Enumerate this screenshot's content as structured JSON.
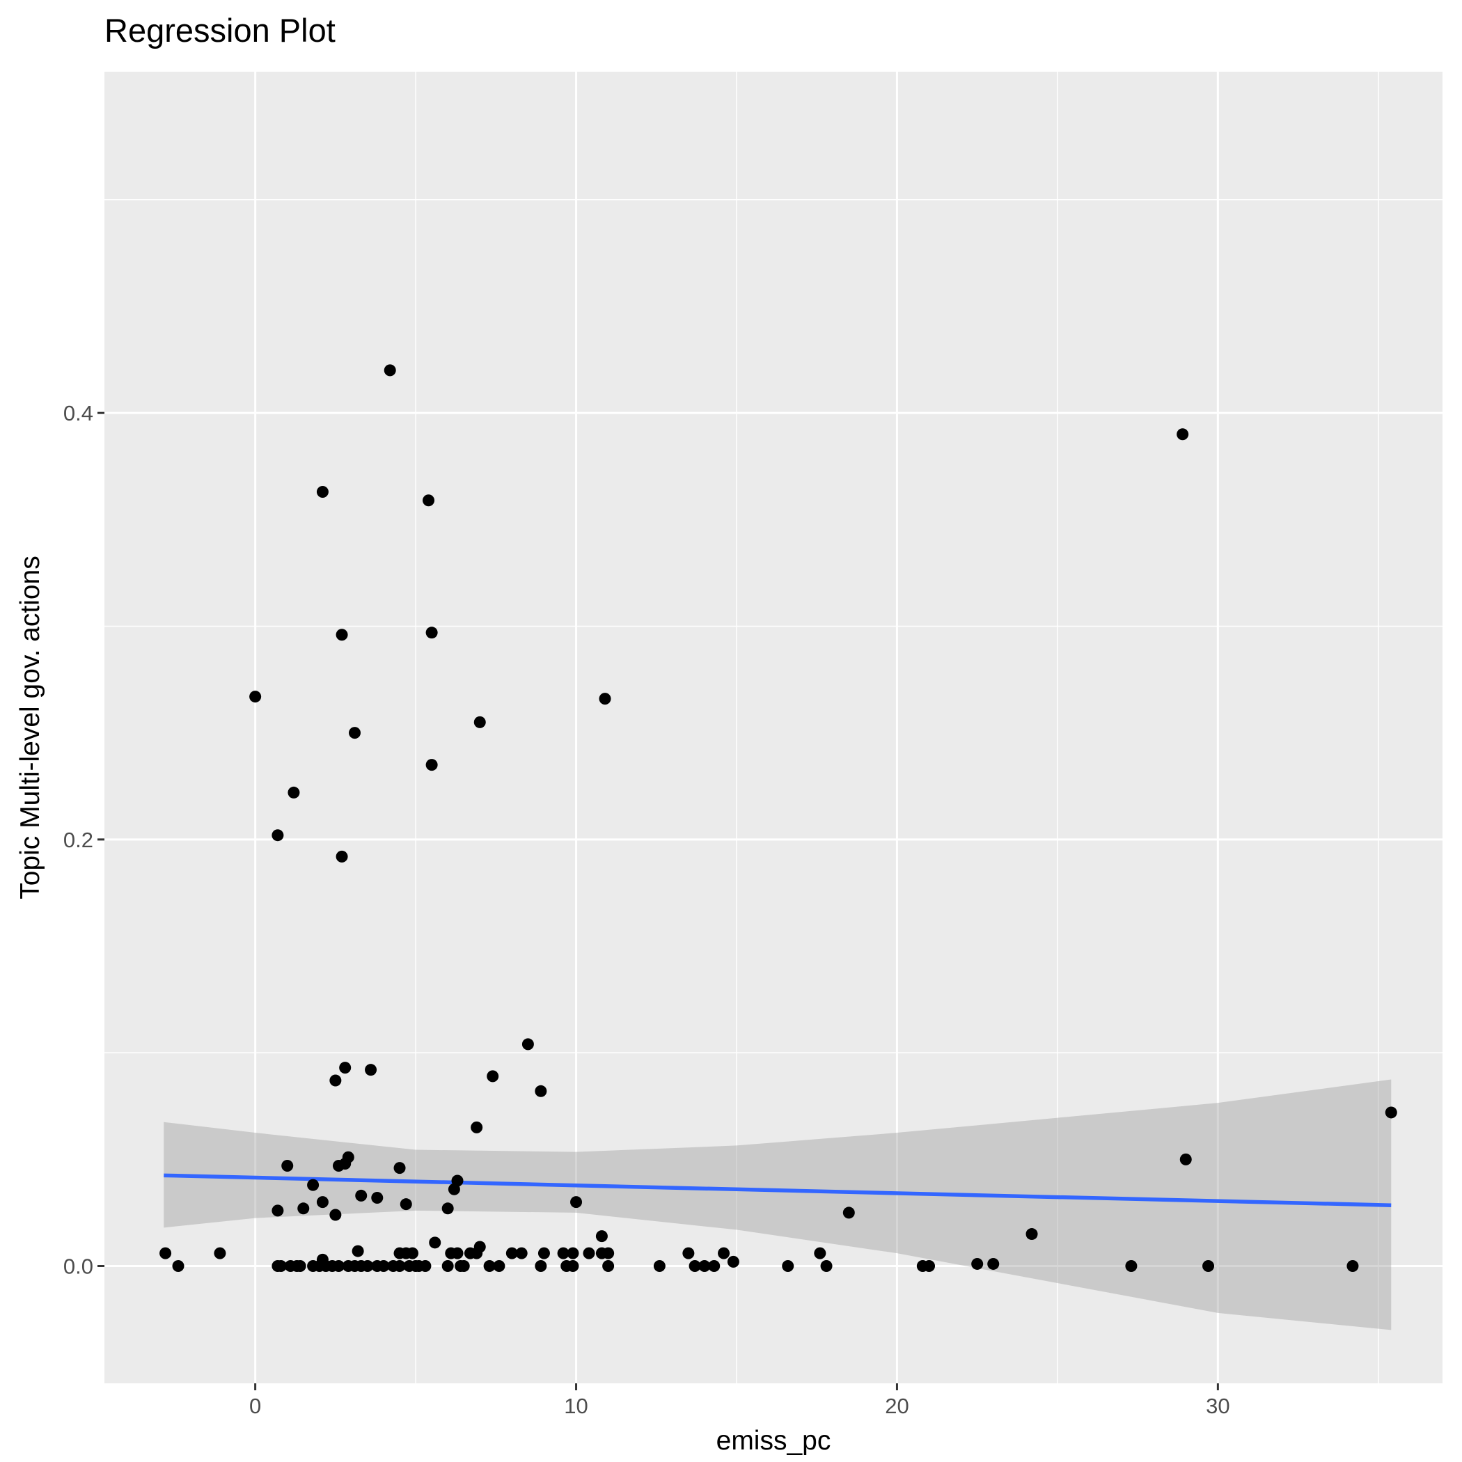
{
  "chart_data": {
    "type": "scatter",
    "title": "Regression Plot",
    "xlabel": "emiss_pc",
    "ylabel": "Topic Multi-level gov. actions",
    "xlim": [
      -4.7,
      37.0
    ],
    "ylim": [
      -0.055,
      0.56
    ],
    "xticks": [
      0,
      10,
      20,
      30
    ],
    "xtick_labels": [
      "0",
      "10",
      "20",
      "30"
    ],
    "yticks": [
      0.0,
      0.2,
      0.4
    ],
    "ytick_labels": [
      "0.0",
      "0.2",
      "0.4"
    ],
    "grid": true,
    "legend": "none",
    "colors": {
      "panel": "#EBEBEB",
      "grid": "#FFFFFF",
      "points": "#000000",
      "fit_line": "#3366FF",
      "ribbon": "#999999"
    },
    "fit_line": {
      "x": [
        -2.85,
        35.4
      ],
      "y": [
        0.0425,
        0.0285
      ]
    },
    "confidence_band": {
      "x": [
        -2.85,
        0.0,
        5.0,
        10.0,
        15.0,
        20.0,
        25.0,
        30.0,
        35.4
      ],
      "upper": [
        0.0675,
        0.0625,
        0.0545,
        0.0535,
        0.0565,
        0.0625,
        0.0695,
        0.0765,
        0.0875
      ],
      "lower": [
        0.018,
        0.0225,
        0.026,
        0.025,
        0.017,
        0.006,
        -0.008,
        -0.022,
        -0.03
      ]
    },
    "points": [
      {
        "x": -2.8,
        "y": 0.006
      },
      {
        "x": -2.4,
        "y": 0.0
      },
      {
        "x": -1.1,
        "y": 0.006
      },
      {
        "x": 0.0,
        "y": 0.267
      },
      {
        "x": 0.7,
        "y": 0.202
      },
      {
        "x": 0.7,
        "y": 0.026
      },
      {
        "x": 0.7,
        "y": 0.0
      },
      {
        "x": 0.8,
        "y": 0.0
      },
      {
        "x": 1.0,
        "y": 0.047
      },
      {
        "x": 1.1,
        "y": 0.0
      },
      {
        "x": 1.2,
        "y": 0.222
      },
      {
        "x": 1.3,
        "y": 0.0
      },
      {
        "x": 1.4,
        "y": 0.0
      },
      {
        "x": 1.5,
        "y": 0.027
      },
      {
        "x": 1.8,
        "y": 0.038
      },
      {
        "x": 1.8,
        "y": 0.0
      },
      {
        "x": 2.0,
        "y": 0.0
      },
      {
        "x": 2.1,
        "y": 0.03
      },
      {
        "x": 2.1,
        "y": 0.363
      },
      {
        "x": 2.1,
        "y": 0.003
      },
      {
        "x": 2.2,
        "y": 0.0
      },
      {
        "x": 2.4,
        "y": 0.0
      },
      {
        "x": 2.5,
        "y": 0.024
      },
      {
        "x": 2.5,
        "y": 0.087
      },
      {
        "x": 2.6,
        "y": 0.047
      },
      {
        "x": 2.6,
        "y": 0.0
      },
      {
        "x": 2.7,
        "y": 0.296
      },
      {
        "x": 2.7,
        "y": 0.192
      },
      {
        "x": 2.8,
        "y": 0.048
      },
      {
        "x": 2.8,
        "y": 0.093
      },
      {
        "x": 2.9,
        "y": 0.051
      },
      {
        "x": 2.9,
        "y": 0.0
      },
      {
        "x": 3.1,
        "y": 0.0
      },
      {
        "x": 3.1,
        "y": 0.25
      },
      {
        "x": 3.2,
        "y": 0.007
      },
      {
        "x": 3.3,
        "y": 0.033
      },
      {
        "x": 3.3,
        "y": 0.0
      },
      {
        "x": 3.5,
        "y": 0.0
      },
      {
        "x": 3.6,
        "y": 0.092
      },
      {
        "x": 3.8,
        "y": 0.032
      },
      {
        "x": 3.8,
        "y": 0.0
      },
      {
        "x": 4.0,
        "y": 0.0
      },
      {
        "x": 4.2,
        "y": 0.42
      },
      {
        "x": 4.3,
        "y": 0.0
      },
      {
        "x": 4.5,
        "y": 0.006
      },
      {
        "x": 4.5,
        "y": 0.046
      },
      {
        "x": 4.5,
        "y": 0.0
      },
      {
        "x": 4.7,
        "y": 0.029
      },
      {
        "x": 4.7,
        "y": 0.006
      },
      {
        "x": 4.8,
        "y": 0.0
      },
      {
        "x": 4.9,
        "y": 0.006
      },
      {
        "x": 5.0,
        "y": 0.0
      },
      {
        "x": 5.1,
        "y": 0.0
      },
      {
        "x": 5.3,
        "y": 0.0
      },
      {
        "x": 5.4,
        "y": 0.359
      },
      {
        "x": 5.5,
        "y": 0.235
      },
      {
        "x": 5.5,
        "y": 0.297
      },
      {
        "x": 5.6,
        "y": 0.011
      },
      {
        "x": 6.0,
        "y": 0.027
      },
      {
        "x": 6.0,
        "y": 0.0
      },
      {
        "x": 6.1,
        "y": 0.006
      },
      {
        "x": 6.2,
        "y": 0.036
      },
      {
        "x": 6.3,
        "y": 0.04
      },
      {
        "x": 6.3,
        "y": 0.006
      },
      {
        "x": 6.4,
        "y": 0.0
      },
      {
        "x": 6.5,
        "y": 0.0
      },
      {
        "x": 6.7,
        "y": 0.006
      },
      {
        "x": 6.9,
        "y": 0.006
      },
      {
        "x": 6.9,
        "y": 0.065
      },
      {
        "x": 7.0,
        "y": 0.009
      },
      {
        "x": 7.0,
        "y": 0.255
      },
      {
        "x": 7.3,
        "y": 0.0
      },
      {
        "x": 7.4,
        "y": 0.089
      },
      {
        "x": 7.6,
        "y": 0.0
      },
      {
        "x": 8.0,
        "y": 0.006
      },
      {
        "x": 8.3,
        "y": 0.006
      },
      {
        "x": 8.5,
        "y": 0.104
      },
      {
        "x": 8.9,
        "y": 0.082
      },
      {
        "x": 8.9,
        "y": 0.0
      },
      {
        "x": 9.0,
        "y": 0.006
      },
      {
        "x": 9.6,
        "y": 0.006
      },
      {
        "x": 9.7,
        "y": 0.0
      },
      {
        "x": 9.9,
        "y": 0.0
      },
      {
        "x": 9.9,
        "y": 0.006
      },
      {
        "x": 10.0,
        "y": 0.03
      },
      {
        "x": 10.4,
        "y": 0.006
      },
      {
        "x": 10.8,
        "y": 0.014
      },
      {
        "x": 10.8,
        "y": 0.006
      },
      {
        "x": 10.9,
        "y": 0.266
      },
      {
        "x": 11.0,
        "y": 0.006
      },
      {
        "x": 11.0,
        "y": 0.0
      },
      {
        "x": 12.6,
        "y": 0.0
      },
      {
        "x": 13.5,
        "y": 0.006
      },
      {
        "x": 13.7,
        "y": 0.0
      },
      {
        "x": 14.0,
        "y": 0.0
      },
      {
        "x": 14.3,
        "y": 0.0
      },
      {
        "x": 14.6,
        "y": 0.006
      },
      {
        "x": 14.9,
        "y": 0.002
      },
      {
        "x": 16.6,
        "y": 0.0
      },
      {
        "x": 17.6,
        "y": 0.006
      },
      {
        "x": 17.8,
        "y": 0.0
      },
      {
        "x": 18.5,
        "y": 0.025
      },
      {
        "x": 20.8,
        "y": 0.0
      },
      {
        "x": 21.0,
        "y": 0.0
      },
      {
        "x": 22.5,
        "y": 0.001
      },
      {
        "x": 23.0,
        "y": 0.001
      },
      {
        "x": 24.2,
        "y": 0.015
      },
      {
        "x": 27.3,
        "y": 0.0
      },
      {
        "x": 28.9,
        "y": 0.39
      },
      {
        "x": 29.0,
        "y": 0.05
      },
      {
        "x": 29.7,
        "y": 0.0
      },
      {
        "x": 34.2,
        "y": 0.0
      },
      {
        "x": 35.4,
        "y": 0.072
      }
    ]
  }
}
